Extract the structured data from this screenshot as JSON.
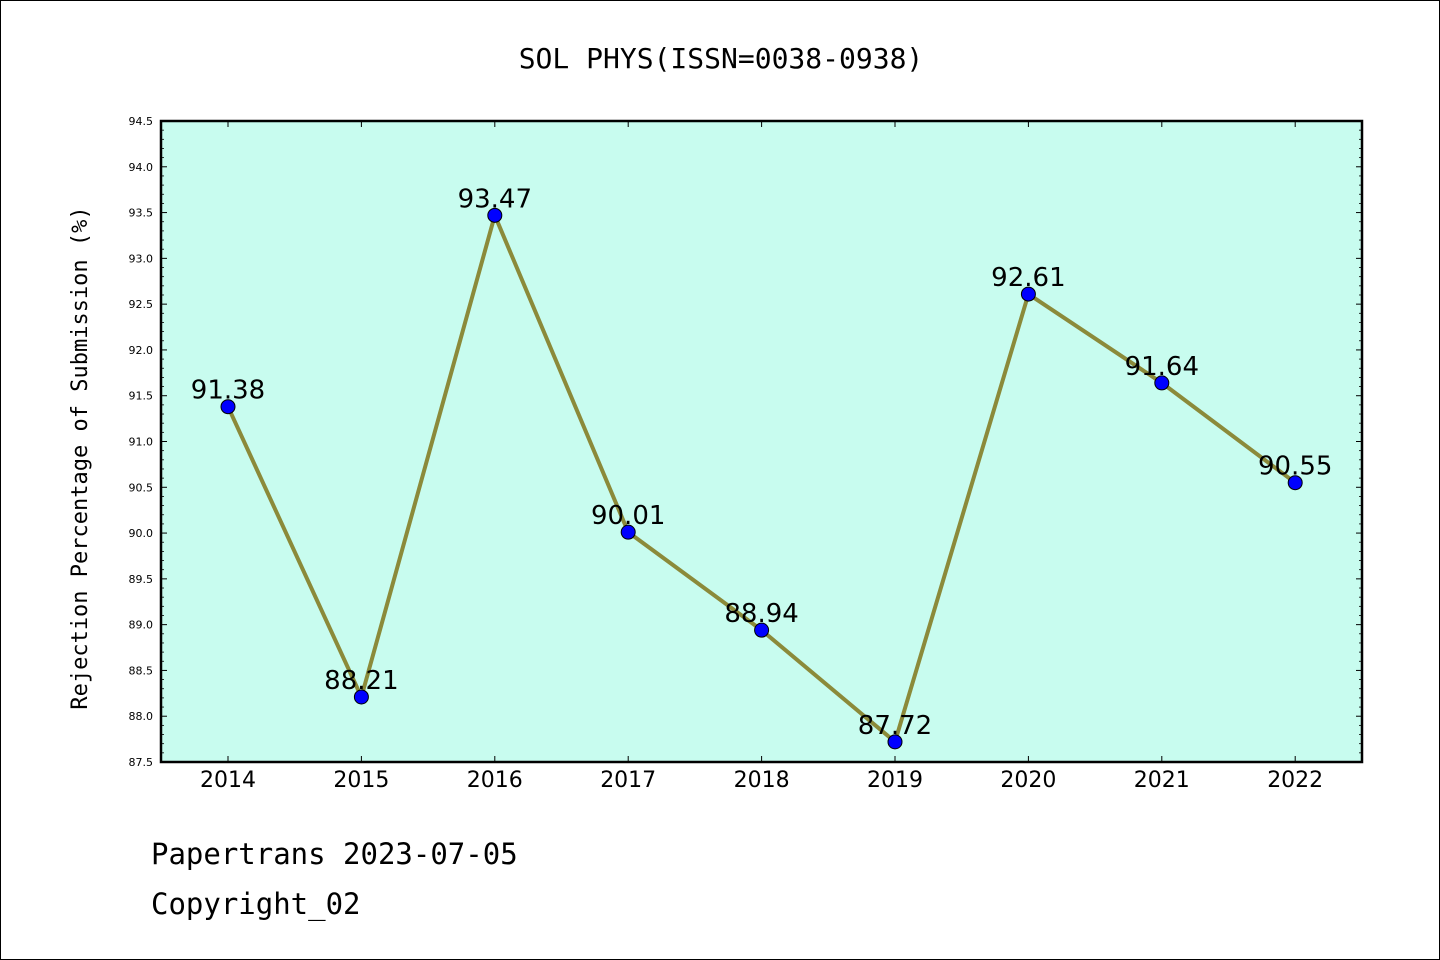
{
  "chart_data": {
    "type": "line",
    "title": "SOL PHYS(ISSN=0038-0938)",
    "xlabel": "",
    "ylabel": "Rejection Percentage of Submission (%)",
    "categories": [
      "2014",
      "2015",
      "2016",
      "2017",
      "2018",
      "2019",
      "2020",
      "2021",
      "2022"
    ],
    "series": [
      {
        "values": [
          91.38,
          88.21,
          93.47,
          90.01,
          88.94,
          87.72,
          92.61,
          91.64,
          90.55
        ]
      }
    ],
    "data_labels": [
      "91.38",
      "88.21",
      "93.47",
      "90.01",
      "88.94",
      "87.72",
      "92.61",
      "91.64",
      "90.55"
    ],
    "ylim": [
      87.5,
      94.5
    ],
    "yticks": [
      "87.5",
      "88.0",
      "88.5",
      "89.0",
      "89.5",
      "90.0",
      "90.5",
      "91.0",
      "91.5",
      "92.0",
      "92.5",
      "93.0",
      "93.5",
      "94.0",
      "94.5"
    ],
    "grid": false,
    "legend": "none",
    "colors": {
      "plot_background": "#c8fcef",
      "line": "#8b8a3a",
      "marker": "#0000ff"
    }
  },
  "footer": {
    "line1": "Papertrans 2023-07-05",
    "line2": "Copyright_02"
  }
}
